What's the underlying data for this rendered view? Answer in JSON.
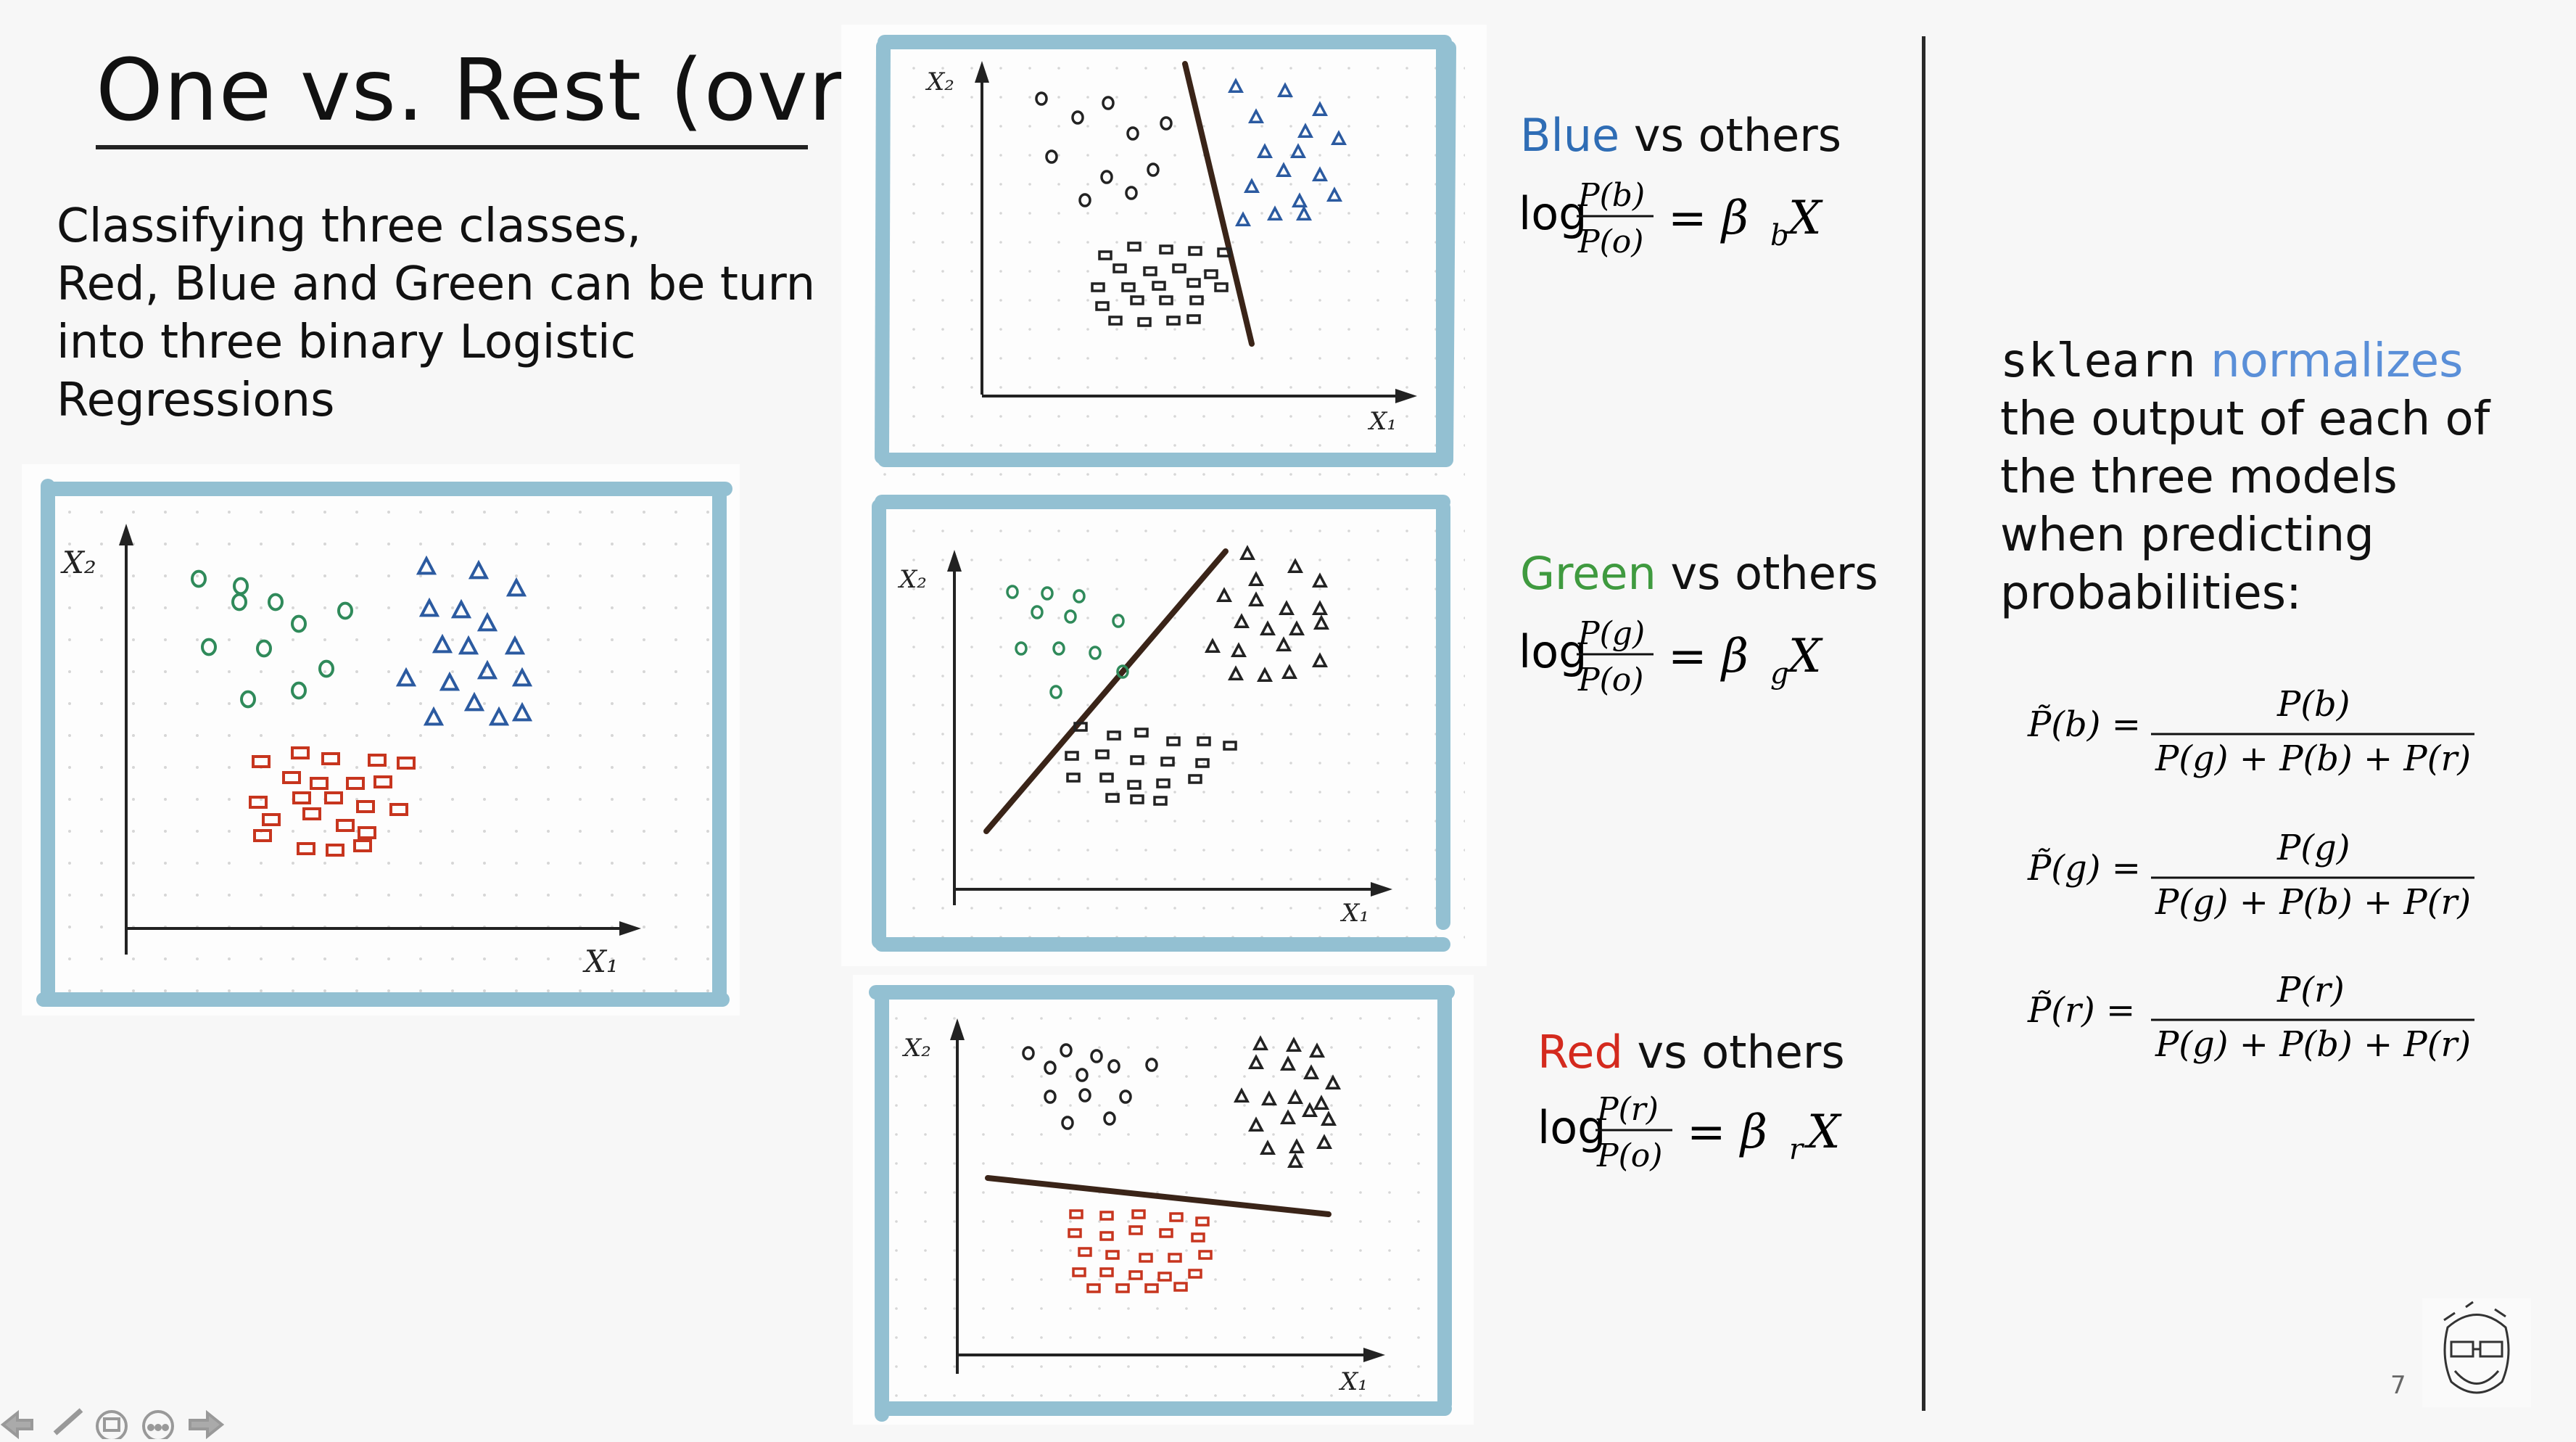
{
  "slide": {
    "title": "One vs. Rest (ovr)",
    "intro_lines": [
      "Classifying three classes,",
      "Red, Blue and Green can be turn",
      "into three binary Logistic",
      "Regressions"
    ],
    "page_number": "7"
  },
  "axes": {
    "y_label": "X₂",
    "x_label": "X₁"
  },
  "models": [
    {
      "class_word": "Blue",
      "rest_word": " vs others",
      "color": "#2f6db5",
      "eq": {
        "lhs": "log",
        "num": "P(b)",
        "den": "P(o)",
        "rhs": "= β",
        "sub": "b",
        "tail": "X"
      }
    },
    {
      "class_word": "Green",
      "rest_word": " vs others",
      "color": "#3f9a3f",
      "eq": {
        "lhs": "log",
        "num": "P(g)",
        "den": "P(o)",
        "rhs": "= β",
        "sub": "g",
        "tail": "X"
      }
    },
    {
      "class_word": "Red",
      "rest_word": " vs others",
      "color": "#d42a1e",
      "eq": {
        "lhs": "log",
        "num": "P(r)",
        "den": "P(o)",
        "rhs": "= β",
        "sub": "r",
        "tail": "X"
      }
    }
  ],
  "sklearn": {
    "code": "sklearn",
    "accent_word": " normalizes",
    "lines": [
      "the output of each of",
      "the three models",
      "when predicting",
      "probabilities:"
    ],
    "accent_color": "#5a8fd8"
  },
  "normalized": [
    {
      "lhs": "P̃(b) =",
      "num": "P(b)",
      "den": "P(g) + P(b) + P(r)"
    },
    {
      "lhs": "P̃(g) =",
      "num": "P(g)",
      "den": "P(g) + P(b) + P(r)"
    },
    {
      "lhs": "P̃(r) =",
      "num": "P(r)",
      "den": "P(g) + P(b) + P(r)"
    }
  ],
  "colors": {
    "frame": "#93c0d2",
    "green": "#2f8a5a",
    "blue": "#2b5aa0",
    "red": "#c7351e",
    "ink": "#111111"
  },
  "icons": [
    "back-arrow-icon",
    "pen-icon",
    "slides-icon",
    "more-icon",
    "forward-arrow-icon"
  ]
}
